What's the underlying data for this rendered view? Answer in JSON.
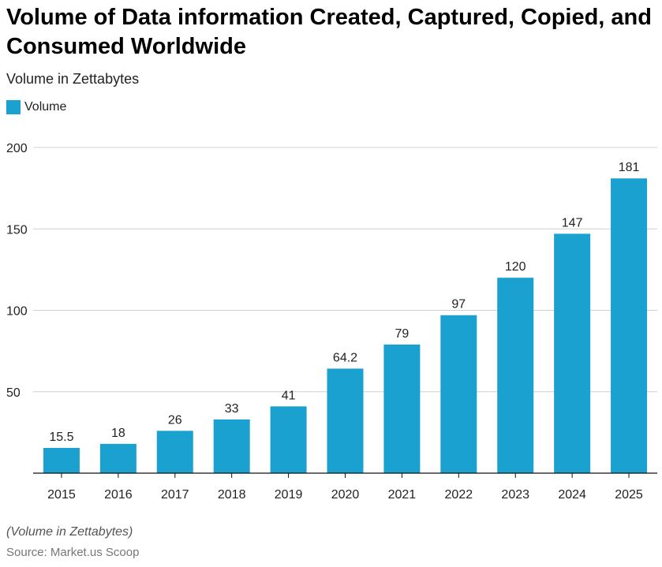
{
  "header": {
    "title": "Volume of Data information Created, Captured, Copied, and Consumed Worldwide",
    "subtitle": "Volume in Zettabytes"
  },
  "legend": {
    "label": "Volume"
  },
  "footer": {
    "note": "(Volume in Zettabytes)",
    "source": "Source: Market.us Scoop"
  },
  "colors": {
    "bar": "#1ba1cf",
    "grid": "#d0d0d0",
    "axis": "#111111"
  },
  "chart_data": {
    "type": "bar",
    "categories": [
      "2015",
      "2016",
      "2017",
      "2018",
      "2019",
      "2020",
      "2021",
      "2022",
      "2023",
      "2024",
      "2025"
    ],
    "series": [
      {
        "name": "Volume",
        "values": [
          15.5,
          18,
          26,
          33,
          41,
          64.2,
          79,
          97,
          120,
          147,
          181
        ],
        "data_labels": [
          "15.5",
          "18",
          "26",
          "33",
          "41",
          "64.2",
          "79",
          "97",
          "120",
          "147",
          "181"
        ]
      }
    ],
    "ylim": [
      0,
      200
    ],
    "yticks": [
      50,
      100,
      150,
      200
    ],
    "ytick_labels": [
      "50",
      "100",
      "150",
      "200"
    ],
    "grid": true,
    "legend_position": "top-left",
    "xlabel": "",
    "ylabel": ""
  }
}
